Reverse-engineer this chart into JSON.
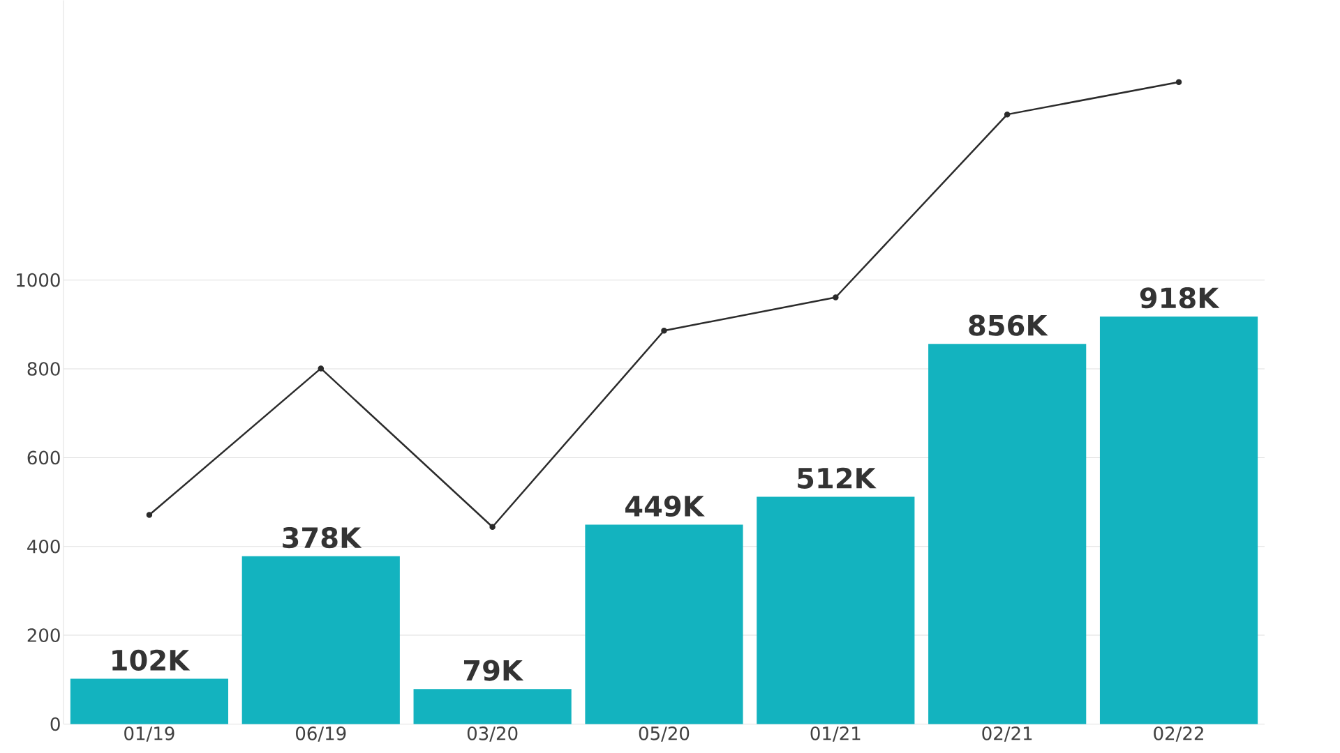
{
  "chart_data": {
    "type": "bar",
    "categories": [
      "01/19",
      "06/19",
      "03/20",
      "05/20",
      "01/21",
      "02/21",
      "02/22"
    ],
    "series": [
      {
        "color": "#13b3bf",
        "values": [
          102,
          378,
          79,
          449,
          512,
          856,
          918
        ],
        "value_labels": [
          "102K",
          "378K",
          "79K",
          "449K",
          "512K",
          "856K",
          "918K"
        ]
      },
      {
        "type": "line",
        "color": "#2b2b2b",
        "marker": "circle",
        "values": [
          471,
          801,
          444,
          886,
          961,
          1373,
          1446
        ]
      }
    ],
    "ylim": [
      0,
      1630
    ],
    "yticks": [
      0,
      200,
      400,
      600,
      800,
      1000
    ],
    "grid": "y"
  }
}
